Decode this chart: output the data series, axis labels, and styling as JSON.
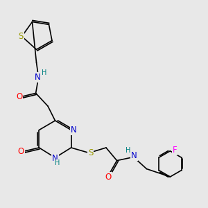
{
  "background_color": "#e8e8e8",
  "bond_color": "#000000",
  "N_color": "#0000cc",
  "O_color": "#ff0000",
  "S_color": "#999900",
  "F_color": "#ff00ff",
  "H_color": "#008080",
  "figsize": [
    3.0,
    3.0
  ],
  "dpi": 100,
  "xlim": [
    0,
    10
  ],
  "ylim": [
    0,
    10
  ]
}
